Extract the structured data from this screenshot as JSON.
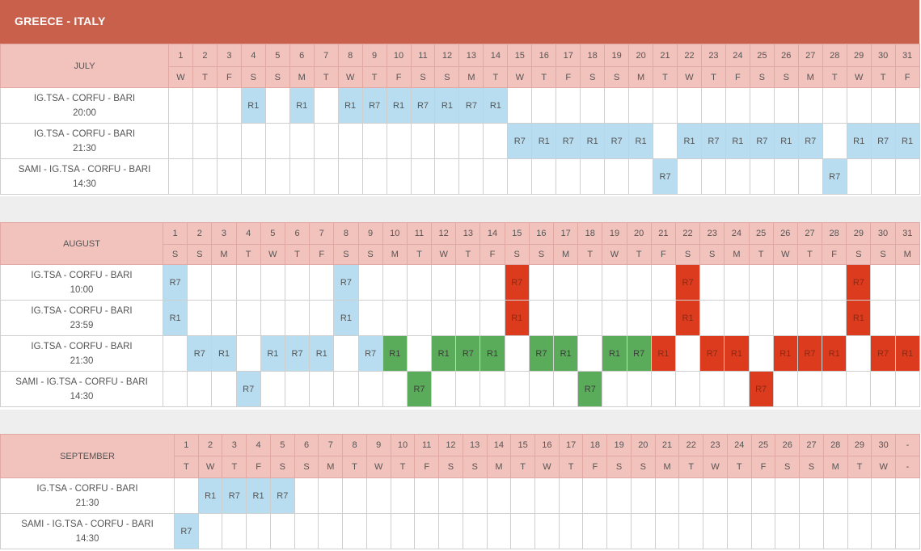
{
  "page": {
    "title": "GREECE - ITALY",
    "colors": {
      "header": "#c8604b",
      "day_header": "#f2c2bc",
      "blue": "#b9ddf0",
      "green": "#5aab5a",
      "red": "#dc3b1e"
    }
  },
  "months": [
    {
      "name": "JULY",
      "days": [
        "1",
        "2",
        "3",
        "4",
        "5",
        "6",
        "7",
        "8",
        "9",
        "10",
        "11",
        "12",
        "13",
        "14",
        "15",
        "16",
        "17",
        "18",
        "19",
        "20",
        "21",
        "22",
        "23",
        "24",
        "25",
        "26",
        "27",
        "28",
        "29",
        "30",
        "31"
      ],
      "weekdays": [
        "W",
        "T",
        "F",
        "S",
        "S",
        "M",
        "T",
        "W",
        "T",
        "F",
        "S",
        "S",
        "M",
        "T",
        "W",
        "T",
        "F",
        "S",
        "S",
        "M",
        "T",
        "W",
        "T",
        "F",
        "S",
        "S",
        "M",
        "T",
        "W",
        "T",
        "F"
      ],
      "routes": [
        {
          "name": "IG.TSA - CORFU - BARI",
          "time": "20:00",
          "cells": [
            "",
            "",
            "",
            {
              "t": "R1",
              "c": "b"
            },
            "",
            {
              "t": "R1",
              "c": "b"
            },
            "",
            {
              "t": "R1",
              "c": "b"
            },
            {
              "t": "R7",
              "c": "b"
            },
            {
              "t": "R1",
              "c": "b"
            },
            {
              "t": "R7",
              "c": "b"
            },
            {
              "t": "R1",
              "c": "b"
            },
            {
              "t": "R7",
              "c": "b"
            },
            {
              "t": "R1",
              "c": "b"
            },
            "",
            "",
            "",
            "",
            "",
            "",
            "",
            "",
            "",
            "",
            "",
            "",
            "",
            "",
            "",
            "",
            ""
          ]
        },
        {
          "name": "IG.TSA - CORFU - BARI",
          "time": "21:30",
          "cells": [
            "",
            "",
            "",
            "",
            "",
            "",
            "",
            "",
            "",
            "",
            "",
            "",
            "",
            "",
            {
              "t": "R7",
              "c": "b"
            },
            {
              "t": "R1",
              "c": "b"
            },
            {
              "t": "R7",
              "c": "b"
            },
            {
              "t": "R1",
              "c": "b"
            },
            {
              "t": "R7",
              "c": "b"
            },
            {
              "t": "R1",
              "c": "b"
            },
            "",
            {
              "t": "R1",
              "c": "b"
            },
            {
              "t": "R7",
              "c": "b"
            },
            {
              "t": "R1",
              "c": "b"
            },
            {
              "t": "R7",
              "c": "b"
            },
            {
              "t": "R1",
              "c": "b"
            },
            {
              "t": "R7",
              "c": "b"
            },
            "",
            {
              "t": "R1",
              "c": "b"
            },
            {
              "t": "R7",
              "c": "b"
            },
            {
              "t": "R1",
              "c": "b"
            }
          ]
        },
        {
          "name": "SAMI - IG.TSA - CORFU - BARI",
          "time": "14:30",
          "cells": [
            "",
            "",
            "",
            "",
            "",
            "",
            "",
            "",
            "",
            "",
            "",
            "",
            "",
            "",
            "",
            "",
            "",
            "",
            "",
            "",
            {
              "t": "R7",
              "c": "b"
            },
            "",
            "",
            "",
            "",
            "",
            "",
            {
              "t": "R7",
              "c": "b"
            },
            "",
            "",
            ""
          ]
        }
      ]
    },
    {
      "name": "AUGUST",
      "days": [
        "1",
        "2",
        "3",
        "4",
        "5",
        "6",
        "7",
        "8",
        "9",
        "10",
        "11",
        "12",
        "13",
        "14",
        "15",
        "16",
        "17",
        "18",
        "19",
        "20",
        "21",
        "22",
        "23",
        "24",
        "25",
        "26",
        "27",
        "28",
        "29",
        "30",
        "31"
      ],
      "weekdays": [
        "S",
        "S",
        "M",
        "T",
        "W",
        "T",
        "F",
        "S",
        "S",
        "M",
        "T",
        "W",
        "T",
        "F",
        "S",
        "S",
        "M",
        "T",
        "W",
        "T",
        "F",
        "S",
        "S",
        "M",
        "T",
        "W",
        "T",
        "F",
        "S",
        "S",
        "M"
      ],
      "routes": [
        {
          "name": "IG.TSA - CORFU - BARI",
          "time": "10:00",
          "cells": [
            {
              "t": "R7",
              "c": "b"
            },
            "",
            "",
            "",
            "",
            "",
            "",
            {
              "t": "R7",
              "c": "b"
            },
            "",
            "",
            "",
            "",
            "",
            "",
            {
              "t": "R7",
              "c": "r"
            },
            "",
            "",
            "",
            "",
            "",
            "",
            {
              "t": "R7",
              "c": "r"
            },
            "",
            "",
            "",
            "",
            "",
            "",
            {
              "t": "R7",
              "c": "r"
            },
            "",
            ""
          ]
        },
        {
          "name": "IG.TSA - CORFU - BARI",
          "time": "23:59",
          "cells": [
            {
              "t": "R1",
              "c": "b"
            },
            "",
            "",
            "",
            "",
            "",
            "",
            {
              "t": "R1",
              "c": "b"
            },
            "",
            "",
            "",
            "",
            "",
            "",
            {
              "t": "R1",
              "c": "r"
            },
            "",
            "",
            "",
            "",
            "",
            "",
            {
              "t": "R1",
              "c": "r"
            },
            "",
            "",
            "",
            "",
            "",
            "",
            {
              "t": "R1",
              "c": "r"
            },
            "",
            ""
          ]
        },
        {
          "name": "IG.TSA - CORFU - BARI",
          "time": "21:30",
          "cells": [
            "",
            {
              "t": "R7",
              "c": "b"
            },
            {
              "t": "R1",
              "c": "b"
            },
            "",
            {
              "t": "R1",
              "c": "b"
            },
            {
              "t": "R7",
              "c": "b"
            },
            {
              "t": "R1",
              "c": "b"
            },
            "",
            {
              "t": "R7",
              "c": "b"
            },
            {
              "t": "R1",
              "c": "g"
            },
            "",
            {
              "t": "R1",
              "c": "g"
            },
            {
              "t": "R7",
              "c": "g"
            },
            {
              "t": "R1",
              "c": "g"
            },
            "",
            {
              "t": "R7",
              "c": "g"
            },
            {
              "t": "R1",
              "c": "g"
            },
            "",
            {
              "t": "R1",
              "c": "g"
            },
            {
              "t": "R7",
              "c": "g"
            },
            {
              "t": "R1",
              "c": "r"
            },
            "",
            {
              "t": "R7",
              "c": "r"
            },
            {
              "t": "R1",
              "c": "r"
            },
            "",
            {
              "t": "R1",
              "c": "r"
            },
            {
              "t": "R7",
              "c": "r"
            },
            {
              "t": "R1",
              "c": "r"
            },
            "",
            {
              "t": "R7",
              "c": "r"
            },
            {
              "t": "R1",
              "c": "r"
            }
          ]
        },
        {
          "name": "SAMI - IG.TSA - CORFU - BARI",
          "time": "14:30",
          "cells": [
            "",
            "",
            "",
            {
              "t": "R7",
              "c": "b"
            },
            "",
            "",
            "",
            "",
            "",
            "",
            {
              "t": "R7",
              "c": "g"
            },
            "",
            "",
            "",
            "",
            "",
            "",
            {
              "t": "R7",
              "c": "g"
            },
            "",
            "",
            "",
            "",
            "",
            "",
            {
              "t": "R7",
              "c": "r"
            },
            "",
            "",
            "",
            "",
            "",
            ""
          ]
        }
      ]
    },
    {
      "name": "SEPTEMBER",
      "days": [
        "1",
        "2",
        "3",
        "4",
        "5",
        "6",
        "7",
        "8",
        "9",
        "10",
        "11",
        "12",
        "13",
        "14",
        "15",
        "16",
        "17",
        "18",
        "19",
        "20",
        "21",
        "22",
        "23",
        "24",
        "25",
        "26",
        "27",
        "28",
        "29",
        "30",
        "-"
      ],
      "weekdays": [
        "T",
        "W",
        "T",
        "F",
        "S",
        "S",
        "M",
        "T",
        "W",
        "T",
        "F",
        "S",
        "S",
        "M",
        "T",
        "W",
        "T",
        "F",
        "S",
        "S",
        "M",
        "T",
        "W",
        "T",
        "F",
        "S",
        "S",
        "M",
        "T",
        "W",
        "-"
      ],
      "routes": [
        {
          "name": "IG.TSA - CORFU - BARI",
          "time": "21:30",
          "cells": [
            "",
            {
              "t": "R1",
              "c": "b"
            },
            {
              "t": "R7",
              "c": "b"
            },
            {
              "t": "R1",
              "c": "b"
            },
            {
              "t": "R7",
              "c": "b"
            },
            "",
            "",
            "",
            "",
            "",
            "",
            "",
            "",
            "",
            "",
            "",
            "",
            "",
            "",
            "",
            "",
            "",
            "",
            "",
            "",
            "",
            "",
            "",
            "",
            "",
            ""
          ]
        },
        {
          "name": "SAMI - IG.TSA - CORFU - BARI",
          "time": "14:30",
          "cells": [
            {
              "t": "R7",
              "c": "b"
            },
            "",
            "",
            "",
            "",
            "",
            "",
            "",
            "",
            "",
            "",
            "",
            "",
            "",
            "",
            "",
            "",
            "",
            "",
            "",
            "",
            "",
            "",
            "",
            "",
            "",
            "",
            "",
            "",
            "",
            ""
          ]
        }
      ]
    }
  ]
}
